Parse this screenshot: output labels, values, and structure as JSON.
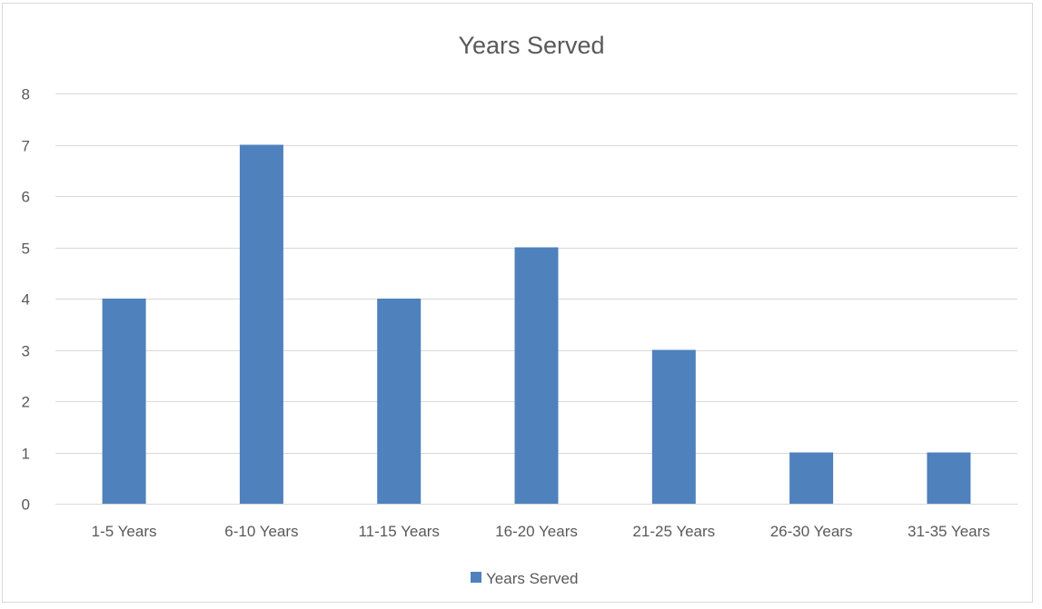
{
  "chart_data": {
    "type": "bar",
    "title": "Years Served",
    "xlabel": "",
    "ylabel": "",
    "categories": [
      "1-5 Years",
      "6-10 Years",
      "11-15 Years",
      "16-20 Years",
      "21-25 Years",
      "26-30 Years",
      "31-35 Years"
    ],
    "series": [
      {
        "name": "Years Served",
        "values": [
          4,
          7,
          4,
          5,
          3,
          1,
          1
        ],
        "color": "#4f81bd"
      }
    ],
    "ylim": [
      0,
      8
    ],
    "yticks": [
      0,
      1,
      2,
      3,
      4,
      5,
      6,
      7,
      8
    ],
    "grid": true,
    "legend_position": "bottom"
  }
}
